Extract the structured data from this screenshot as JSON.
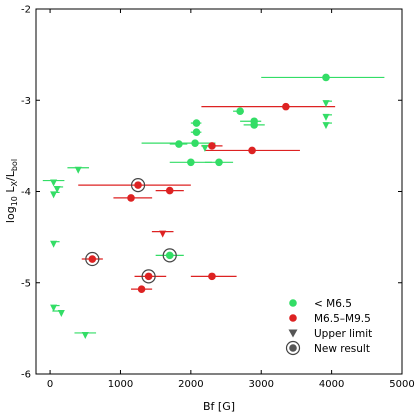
{
  "chart_data": {
    "type": "scatter",
    "xlabel": "Bf [G]",
    "ylabel": "log10 LX/Lbol",
    "ylabel_parts": {
      "prefix": "log",
      "sub1": "10",
      "mid": " L",
      "sub2": "X",
      "slash": "/L",
      "sub3": "bol"
    },
    "xlim": [
      -200,
      5000
    ],
    "ylim": [
      -6,
      -2
    ],
    "xticks": [
      0,
      1000,
      2000,
      3000,
      4000,
      5000
    ],
    "yticks": [
      -6,
      -5,
      -4,
      -3,
      -2
    ],
    "xtick_labels": [
      "0",
      "1000",
      "2000",
      "3000",
      "4000",
      "5000"
    ],
    "ytick_labels": [
      "-6",
      "-5",
      "-4",
      "-3",
      "-2"
    ],
    "legend_position": "lower-right",
    "colors": {
      "early": "#33dd66",
      "late": "#dd2222",
      "axis": "#000000"
    },
    "legend": [
      {
        "key": "early",
        "label": "< M6.5"
      },
      {
        "key": "late",
        "label": "M6.5–M9.5"
      },
      {
        "key": "upper",
        "label": "Upper limit"
      },
      {
        "key": "new",
        "label": "New result"
      }
    ],
    "series": [
      {
        "key": "early",
        "name": "< M6.5",
        "points": [
          {
            "x": 3920,
            "y": -2.75,
            "xlo": 3000,
            "xhi": 4750
          },
          {
            "x": 2700,
            "y": -3.12,
            "xlo": 2600,
            "xhi": 2750
          },
          {
            "x": 2900,
            "y": -3.23,
            "xlo": 2700,
            "xhi": 3000
          },
          {
            "x": 2900,
            "y": -3.27,
            "xlo": 2750,
            "xhi": 3050
          },
          {
            "x": 2080,
            "y": -3.25,
            "xlo": 2000,
            "xhi": 2150
          },
          {
            "x": 2080,
            "y": -3.35,
            "xlo": 2000,
            "xhi": 2150
          },
          {
            "x": 2060,
            "y": -3.47,
            "xlo": 1300,
            "xhi": 2350
          },
          {
            "x": 1830,
            "y": -3.48,
            "xlo": 1700,
            "xhi": 1950
          },
          {
            "x": 2000,
            "y": -3.68,
            "xlo": 1700,
            "xhi": 2300
          },
          {
            "x": 2400,
            "y": -3.68,
            "xlo": 2200,
            "xhi": 2600
          },
          {
            "x": 1700,
            "y": -4.7,
            "xlo": 1500,
            "xhi": 1900
          }
        ]
      },
      {
        "key": "late",
        "name": "M6.5–M9.5",
        "points": [
          {
            "x": 3350,
            "y": -3.07,
            "xlo": 2150,
            "xhi": 4050
          },
          {
            "x": 2300,
            "y": -3.5,
            "xlo": 2150,
            "xhi": 2450
          },
          {
            "x": 2870,
            "y": -3.55,
            "xlo": 2200,
            "xhi": 3550
          },
          {
            "x": 1250,
            "y": -3.93,
            "xlo": 400,
            "xhi": 2000
          },
          {
            "x": 1700,
            "y": -3.99,
            "xlo": 1500,
            "xhi": 1900
          },
          {
            "x": 1150,
            "y": -4.07,
            "xlo": 900,
            "xhi": 1450
          },
          {
            "x": 600,
            "y": -4.74,
            "xlo": 450,
            "xhi": 750
          },
          {
            "x": 1400,
            "y": -4.93,
            "xlo": 1200,
            "xhi": 1650
          },
          {
            "x": 2300,
            "y": -4.93,
            "xlo": 2000,
            "xhi": 2650
          },
          {
            "x": 1300,
            "y": -5.07,
            "xlo": 1150,
            "xhi": 1450
          }
        ]
      }
    ],
    "upper_limits": [
      {
        "x": 3920,
        "y": -3.01,
        "color": "early",
        "h": "right"
      },
      {
        "x": 3920,
        "y": -3.16,
        "color": "early",
        "h": "right"
      },
      {
        "x": 3920,
        "y": -3.25,
        "color": "early",
        "h": "right"
      },
      {
        "x": 2200,
        "y": -3.5,
        "color": "early",
        "h": "none"
      },
      {
        "x": 400,
        "y": -3.74,
        "color": "early",
        "h": "both"
      },
      {
        "x": 50,
        "y": -3.88,
        "color": "early",
        "h": "both"
      },
      {
        "x": 100,
        "y": -3.95,
        "color": "early",
        "h": "right"
      },
      {
        "x": 50,
        "y": -4.01,
        "color": "early",
        "h": "right"
      },
      {
        "x": 1600,
        "y": -4.44,
        "color": "late",
        "h": "both"
      },
      {
        "x": 50,
        "y": -4.55,
        "color": "early",
        "h": "right"
      },
      {
        "x": 50,
        "y": -5.25,
        "color": "early",
        "h": "right"
      },
      {
        "x": 160,
        "y": -5.31,
        "color": "early",
        "h": "left"
      },
      {
        "x": 500,
        "y": -5.55,
        "color": "early",
        "h": "both"
      }
    ],
    "new_results": [
      {
        "x": 1250,
        "y": -3.93
      },
      {
        "x": 600,
        "y": -4.74
      },
      {
        "x": 1700,
        "y": -4.7
      },
      {
        "x": 1400,
        "y": -4.93
      }
    ]
  }
}
